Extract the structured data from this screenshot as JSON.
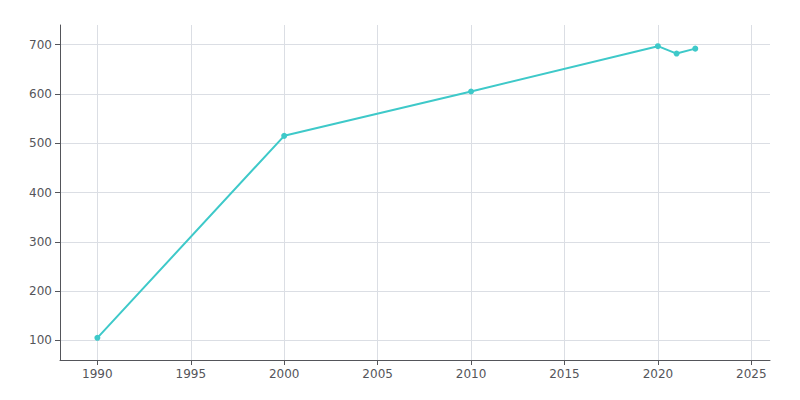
{
  "chart_data": {
    "type": "line",
    "x": [
      1990,
      2000,
      2010,
      2020,
      2021,
      2022
    ],
    "values": [
      105,
      515,
      605,
      697,
      682,
      692
    ],
    "color": "#3ec9c9",
    "marker": "circle",
    "xlim": [
      1988,
      2026
    ],
    "ylim": [
      60,
      740
    ],
    "xticks": [
      1990,
      1995,
      2000,
      2005,
      2010,
      2015,
      2020,
      2025
    ],
    "yticks": [
      100,
      200,
      300,
      400,
      500,
      600,
      700
    ],
    "grid": true
  }
}
